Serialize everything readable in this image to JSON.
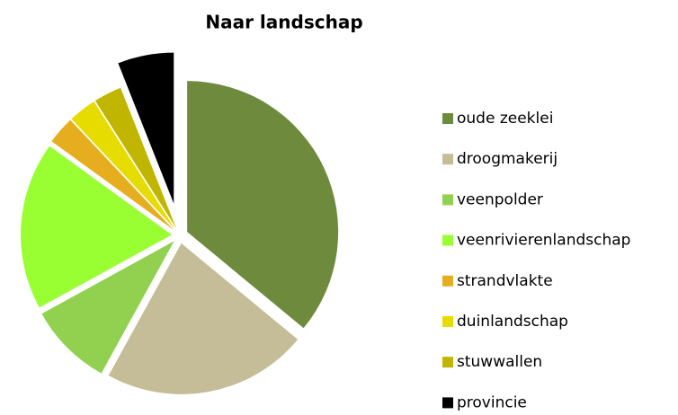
{
  "chart_data": {
    "type": "pie",
    "title": "Naar landschap",
    "categories": [
      "oude zeeklei",
      "droogmakerij",
      "veenpolder",
      "veenrivierenlandschap",
      "strandvlakte",
      "duinlandschap",
      "stuwwallen",
      "provincie"
    ],
    "values": [
      36,
      22,
      9,
      18,
      3,
      3,
      3,
      6
    ],
    "colors": [
      "#6e8b3d",
      "#c4bd97",
      "#92d050",
      "#99ff33",
      "#e6ae1e",
      "#e6dc00",
      "#c0b600",
      "#000000"
    ],
    "legend": "right"
  }
}
